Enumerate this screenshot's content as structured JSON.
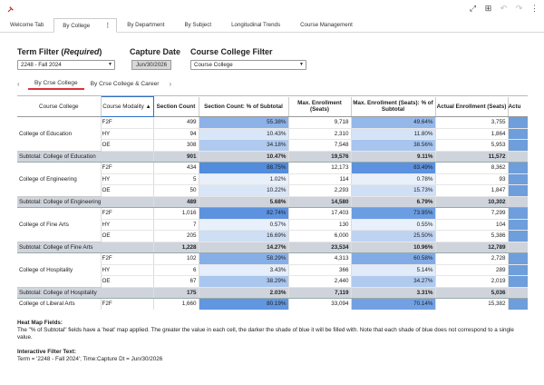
{
  "tabs": [
    {
      "label": "Welcome Tab"
    },
    {
      "label": "By College",
      "active": true
    },
    {
      "label": "By Department"
    },
    {
      "label": "By Subject"
    },
    {
      "label": "Longitudinal Trends"
    },
    {
      "label": "Course Management"
    }
  ],
  "tab_menu_glyph": "⋮",
  "toolbar_icons": [
    "expand-icon",
    "grid-icon",
    "undo-icon",
    "redo-icon",
    "more-icon"
  ],
  "filters": {
    "term_label": "Term Filter (",
    "term_label_italic": "Required",
    "term_label_end": ")",
    "term_value": "2248 - Fall 2024",
    "capture_label": "Capture Date",
    "capture_value": "Jun/30/2026",
    "college_label": "Course College Filter",
    "college_value": "Course College"
  },
  "subtabs": [
    {
      "label": "By Crse College",
      "active": true
    },
    {
      "label": "By Crse College & Career"
    }
  ],
  "table": {
    "columns": [
      "Course College",
      "Course Modality",
      "Section Count",
      "Section Count: % of Subtotal",
      "Max. Enrollment (Seats)",
      "Max. Enrollment (Seats): % of Subtotal",
      "Actual Enrollment (Seats)",
      "Actu"
    ],
    "sort_indicator": "▲",
    "groups": [
      {
        "college": "College of Education",
        "rows": [
          {
            "modality": "F2F",
            "count": "499",
            "count_pct": "55.38%",
            "max": "9,718",
            "max_pct": "49.64%",
            "actual": "3,755",
            "count_shade": 0.55,
            "max_shade": 0.5
          },
          {
            "modality": "HY",
            "count": "94",
            "count_pct": "10.43%",
            "max": "2,310",
            "max_pct": "11.80%",
            "actual": "1,864",
            "count_shade": 0.1,
            "max_shade": 0.12
          },
          {
            "modality": "OE",
            "count": "308",
            "count_pct": "34.18%",
            "max": "7,548",
            "max_pct": "38.56%",
            "actual": "5,953",
            "count_shade": 0.34,
            "max_shade": 0.39
          }
        ],
        "subtotal": {
          "label": "Subtotal: College of Education",
          "count": "901",
          "count_pct": "10.47%",
          "max": "19,576",
          "max_pct": "9.11%",
          "actual": "11,572"
        }
      },
      {
        "college": "College of Engineering",
        "rows": [
          {
            "modality": "F2F",
            "count": "434",
            "count_pct": "88.75%",
            "max": "12,173",
            "max_pct": "83.49%",
            "actual": "8,362",
            "count_shade": 0.89,
            "max_shade": 0.83
          },
          {
            "modality": "HY",
            "count": "5",
            "count_pct": "1.02%",
            "max": "114",
            "max_pct": "0.78%",
            "actual": "93",
            "count_shade": 0.01,
            "max_shade": 0.01
          },
          {
            "modality": "OE",
            "count": "50",
            "count_pct": "10.22%",
            "max": "2,293",
            "max_pct": "15.73%",
            "actual": "1,847",
            "count_shade": 0.1,
            "max_shade": 0.16
          }
        ],
        "subtotal": {
          "label": "Subtotal: College of Engineering",
          "count": "489",
          "count_pct": "5.68%",
          "max": "14,580",
          "max_pct": "6.79%",
          "actual": "10,302"
        }
      },
      {
        "college": "College of Fine Arts",
        "rows": [
          {
            "modality": "F2F",
            "count": "1,016",
            "count_pct": "82.74%",
            "max": "17,403",
            "max_pct": "73.95%",
            "actual": "7,299",
            "count_shade": 0.83,
            "max_shade": 0.74
          },
          {
            "modality": "HY",
            "count": "7",
            "count_pct": "0.57%",
            "max": "130",
            "max_pct": "0.55%",
            "actual": "104",
            "count_shade": 0.01,
            "max_shade": 0.01
          },
          {
            "modality": "OE",
            "count": "205",
            "count_pct": "16.69%",
            "max": "6,000",
            "max_pct": "25.50%",
            "actual": "5,386",
            "count_shade": 0.17,
            "max_shade": 0.26
          }
        ],
        "subtotal": {
          "label": "Subtotal: College of Fine Arts",
          "count": "1,228",
          "count_pct": "14.27%",
          "max": "23,534",
          "max_pct": "10.96%",
          "actual": "12,789"
        }
      },
      {
        "college": "College of Hospitality",
        "rows": [
          {
            "modality": "F2F",
            "count": "102",
            "count_pct": "58.29%",
            "max": "4,313",
            "max_pct": "60.58%",
            "actual": "2,728",
            "count_shade": 0.58,
            "max_shade": 0.61
          },
          {
            "modality": "HY",
            "count": "6",
            "count_pct": "3.43%",
            "max": "366",
            "max_pct": "5.14%",
            "actual": "289",
            "count_shade": 0.03,
            "max_shade": 0.05
          },
          {
            "modality": "OE",
            "count": "67",
            "count_pct": "38.29%",
            "max": "2,440",
            "max_pct": "34.27%",
            "actual": "2,019",
            "count_shade": 0.38,
            "max_shade": 0.34
          }
        ],
        "subtotal": {
          "label": "Subtotal: College of Hospitality",
          "count": "175",
          "count_pct": "2.03%",
          "max": "7,119",
          "max_pct": "3.31%",
          "actual": "5,036"
        }
      },
      {
        "college": "College of Liberal Arts",
        "rows": [
          {
            "modality": "F2F",
            "count": "1,660",
            "count_pct": "80.19%",
            "max": "33,094",
            "max_pct": "70.14%",
            "actual": "15,382",
            "count_shade": 0.8,
            "max_shade": 0.7
          }
        ],
        "subtotal": null
      }
    ]
  },
  "notes": {
    "heat_title": "Heat Map Fields:",
    "heat_text": "The \"% of Subtotal\" fields have a 'heat' map applied. The greater the value in each cell, the darker the shade of blue it will be filled with. Note that each shade of blue does not correspond to a single value.",
    "filter_title": "Interactive Filter Text:",
    "filter_text": "Term = '2248 - Fall 2024'; Time:Capture Dt = Jun/30/2026"
  },
  "colors": {
    "heat_low": "#eaf1fb",
    "heat_high": "#3f7fd9",
    "subtotal_bg": "#cfd4dc",
    "active_subtab": "#dd3333"
  }
}
